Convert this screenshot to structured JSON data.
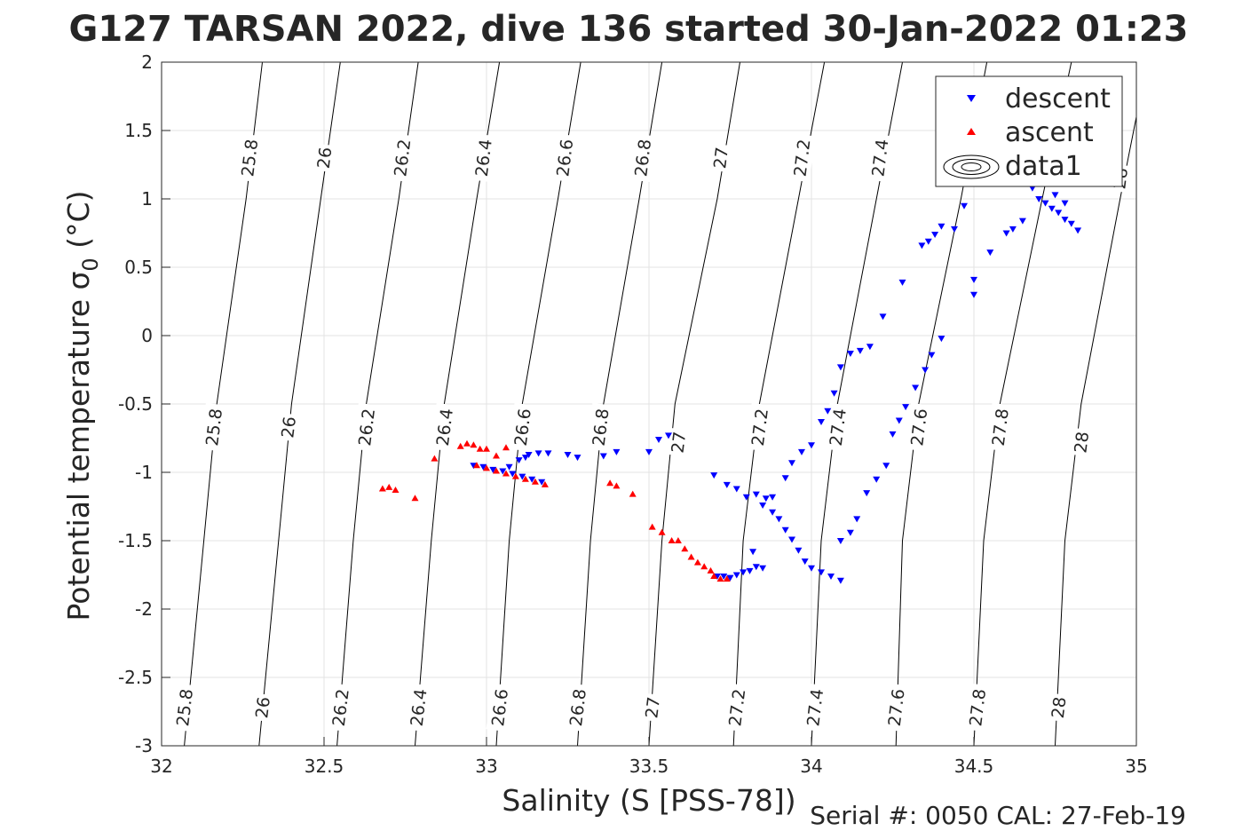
{
  "chart_data": {
    "type": "scatter",
    "title": "G127 TARSAN 2022, dive 136 started 30-Jan-2022 01:23",
    "xlabel": "Salinity (S [PSS-78])",
    "ylabel": "Potential temperature σ",
    "ylabel_subscript": "0",
    "ylabel_unit": " (°C)",
    "footer": "Serial #: 0050  CAL: 27-Feb-19",
    "xlim": [
      32,
      35
    ],
    "ylim": [
      -3,
      2
    ],
    "xticks": [
      32,
      32.5,
      33,
      33.5,
      34,
      34.5,
      35
    ],
    "yticks": [
      -3,
      -2.5,
      -2,
      -1.5,
      -1,
      -0.5,
      0,
      0.5,
      1,
      1.5,
      2
    ],
    "grid": true,
    "legend_placement": "top-right",
    "legend": [
      "descent",
      "ascent",
      "data1"
    ],
    "colors": {
      "descent": "#0000ff",
      "ascent": "#ff0000",
      "contour": "#000000"
    },
    "contours": [
      {
        "label": "25.8",
        "points": [
          [
            32.07,
            -3
          ],
          [
            32.13,
            -1.5
          ],
          [
            32.17,
            -0.5
          ],
          [
            32.26,
            1
          ],
          [
            32.31,
            2
          ]
        ]
      },
      {
        "label": "26",
        "points": [
          [
            32.3,
            -3
          ],
          [
            32.36,
            -1.5
          ],
          [
            32.4,
            -0.5
          ],
          [
            32.49,
            1
          ],
          [
            32.55,
            2
          ]
        ]
      },
      {
        "label": "26.2",
        "points": [
          [
            32.54,
            -3
          ],
          [
            32.59,
            -1.5
          ],
          [
            32.63,
            -0.5
          ],
          [
            32.73,
            1
          ],
          [
            32.79,
            2
          ]
        ]
      },
      {
        "label": "26.4",
        "points": [
          [
            32.78,
            -3
          ],
          [
            32.83,
            -1.5
          ],
          [
            32.87,
            -0.5
          ],
          [
            32.97,
            1
          ],
          [
            33.04,
            2
          ]
        ]
      },
      {
        "label": "26.6",
        "points": [
          [
            33.03,
            -3
          ],
          [
            33.07,
            -1.5
          ],
          [
            33.11,
            -0.5
          ],
          [
            33.22,
            1
          ],
          [
            33.29,
            2
          ]
        ]
      },
      {
        "label": "26.8",
        "points": [
          [
            33.28,
            -3
          ],
          [
            33.32,
            -1.5
          ],
          [
            33.36,
            -0.5
          ],
          [
            33.47,
            1
          ],
          [
            33.54,
            2
          ]
        ]
      },
      {
        "label": "27",
        "points": [
          [
            33.5,
            -3
          ],
          [
            33.54,
            -1.5
          ],
          [
            33.58,
            -0.5
          ],
          [
            33.71,
            1
          ],
          [
            33.78,
            2
          ]
        ]
      },
      {
        "label": "27.2",
        "points": [
          [
            33.76,
            -3
          ],
          [
            33.79,
            -1.5
          ],
          [
            33.84,
            -0.5
          ],
          [
            33.96,
            1
          ],
          [
            34.04,
            2
          ]
        ]
      },
      {
        "label": "27.4",
        "points": [
          [
            34.0,
            -3
          ],
          [
            34.03,
            -1.5
          ],
          [
            34.08,
            -0.5
          ],
          [
            34.2,
            1
          ],
          [
            34.28,
            2
          ]
        ]
      },
      {
        "label": "27.6",
        "points": [
          [
            34.26,
            -3
          ],
          [
            34.28,
            -1.5
          ],
          [
            34.33,
            -0.5
          ],
          [
            34.46,
            1
          ],
          [
            34.54,
            2
          ]
        ]
      },
      {
        "label": "27.8",
        "points": [
          [
            34.5,
            -3
          ],
          [
            34.53,
            -1.5
          ],
          [
            34.58,
            -0.5
          ],
          [
            34.71,
            1
          ],
          [
            34.8,
            2
          ]
        ]
      },
      {
        "label": "28",
        "points": [
          [
            34.75,
            -3
          ],
          [
            34.78,
            -1.5
          ],
          [
            34.83,
            -0.5
          ],
          [
            34.95,
            1
          ],
          [
            35.0,
            1.6
          ]
        ]
      }
    ],
    "contour_labels": [
      {
        "label": "25.8",
        "x": 32.07,
        "y": -2.72
      },
      {
        "label": "26",
        "x": 32.31,
        "y": -2.72
      },
      {
        "label": "26.2",
        "x": 32.55,
        "y": -2.72
      },
      {
        "label": "26.4",
        "x": 32.79,
        "y": -2.72
      },
      {
        "label": "26.6",
        "x": 33.04,
        "y": -2.72
      },
      {
        "label": "26.8",
        "x": 33.28,
        "y": -2.72
      },
      {
        "label": "27",
        "x": 33.51,
        "y": -2.72
      },
      {
        "label": "27.2",
        "x": 33.77,
        "y": -2.72
      },
      {
        "label": "27.4",
        "x": 34.01,
        "y": -2.72
      },
      {
        "label": "27.6",
        "x": 34.26,
        "y": -2.72
      },
      {
        "label": "27.8",
        "x": 34.51,
        "y": -2.72
      },
      {
        "label": "28",
        "x": 34.76,
        "y": -2.72
      },
      {
        "label": "25.8",
        "x": 32.16,
        "y": -0.67
      },
      {
        "label": "26",
        "x": 32.39,
        "y": -0.67
      },
      {
        "label": "26.2",
        "x": 32.63,
        "y": -0.67
      },
      {
        "label": "26.4",
        "x": 32.87,
        "y": -0.67
      },
      {
        "label": "26.6",
        "x": 33.11,
        "y": -0.67
      },
      {
        "label": "26.8",
        "x": 33.35,
        "y": -0.67
      },
      {
        "label": "27",
        "x": 33.59,
        "y": -0.78
      },
      {
        "label": "27.2",
        "x": 33.84,
        "y": -0.67
      },
      {
        "label": "27.4",
        "x": 34.08,
        "y": -0.67
      },
      {
        "label": "27.6",
        "x": 34.33,
        "y": -0.67
      },
      {
        "label": "27.8",
        "x": 34.58,
        "y": -0.67
      },
      {
        "label": "28",
        "x": 34.83,
        "y": -0.78
      },
      {
        "label": "25.8",
        "x": 32.27,
        "y": 1.3
      },
      {
        "label": "26",
        "x": 32.5,
        "y": 1.3
      },
      {
        "label": "26.2",
        "x": 32.74,
        "y": 1.3
      },
      {
        "label": "26.4",
        "x": 32.99,
        "y": 1.3
      },
      {
        "label": "26.6",
        "x": 33.24,
        "y": 1.3
      },
      {
        "label": "26.8",
        "x": 33.48,
        "y": 1.3
      },
      {
        "label": "27",
        "x": 33.72,
        "y": 1.3
      },
      {
        "label": "27.2",
        "x": 33.97,
        "y": 1.3
      },
      {
        "label": "27.4",
        "x": 34.21,
        "y": 1.3
      },
      {
        "label": "28",
        "x": 34.95,
        "y": 1.15
      }
    ],
    "series": [
      {
        "name": "descent",
        "marker": "triangle-down",
        "points": [
          [
            32.96,
            -0.95
          ],
          [
            32.99,
            -0.96
          ],
          [
            33.02,
            -0.98
          ],
          [
            33.05,
            -0.99
          ],
          [
            33.08,
            -1.01
          ],
          [
            33.11,
            -1.03
          ],
          [
            33.14,
            -1.05
          ],
          [
            33.17,
            -1.07
          ],
          [
            33.07,
            -0.96
          ],
          [
            33.1,
            -0.91
          ],
          [
            33.13,
            -0.87
          ],
          [
            33.16,
            -0.86
          ],
          [
            33.12,
            -0.89
          ],
          [
            33.19,
            -0.86
          ],
          [
            33.25,
            -0.87
          ],
          [
            33.28,
            -0.89
          ],
          [
            33.36,
            -0.88
          ],
          [
            33.4,
            -0.85
          ],
          [
            33.5,
            -0.85
          ],
          [
            33.53,
            -0.76
          ],
          [
            33.56,
            -0.73
          ],
          [
            33.71,
            -1.76
          ],
          [
            33.73,
            -1.76
          ],
          [
            33.75,
            -1.77
          ],
          [
            33.77,
            -1.75
          ],
          [
            33.79,
            -1.73
          ],
          [
            33.81,
            -1.72
          ],
          [
            33.83,
            -1.69
          ],
          [
            33.85,
            -1.7
          ],
          [
            33.7,
            -1.02
          ],
          [
            33.74,
            -1.09
          ],
          [
            33.77,
            -1.12
          ],
          [
            33.8,
            -1.18
          ],
          [
            33.83,
            -1.16
          ],
          [
            33.86,
            -1.19
          ],
          [
            33.88,
            -1.29
          ],
          [
            33.9,
            -1.34
          ],
          [
            33.92,
            -1.42
          ],
          [
            33.94,
            -1.49
          ],
          [
            33.96,
            -1.57
          ],
          [
            33.98,
            -1.65
          ],
          [
            34.0,
            -1.7
          ],
          [
            34.03,
            -1.73
          ],
          [
            34.06,
            -1.76
          ],
          [
            34.09,
            -1.79
          ],
          [
            33.82,
            -1.58
          ],
          [
            33.85,
            -1.24
          ],
          [
            33.88,
            -1.18
          ],
          [
            33.92,
            -1.04
          ],
          [
            33.94,
            -0.93
          ],
          [
            33.97,
            -0.85
          ],
          [
            34.0,
            -0.8
          ],
          [
            34.03,
            -0.63
          ],
          [
            34.05,
            -0.55
          ],
          [
            34.07,
            -0.42
          ],
          [
            34.09,
            -0.23
          ],
          [
            34.12,
            -0.13
          ],
          [
            34.15,
            -0.11
          ],
          [
            34.18,
            -0.08
          ],
          [
            34.09,
            -1.5
          ],
          [
            34.12,
            -1.44
          ],
          [
            34.14,
            -1.34
          ],
          [
            34.17,
            -1.15
          ],
          [
            34.2,
            -1.05
          ],
          [
            34.23,
            -0.95
          ],
          [
            34.25,
            -0.72
          ],
          [
            34.27,
            -0.62
          ],
          [
            34.29,
            -0.52
          ],
          [
            34.32,
            -0.38
          ],
          [
            34.35,
            -0.25
          ],
          [
            34.37,
            -0.14
          ],
          [
            34.4,
            -0.02
          ],
          [
            34.22,
            0.14
          ],
          [
            34.28,
            0.39
          ],
          [
            34.34,
            0.66
          ],
          [
            34.36,
            0.69
          ],
          [
            34.38,
            0.74
          ],
          [
            34.4,
            0.8
          ],
          [
            34.44,
            0.78
          ],
          [
            34.47,
            0.95
          ],
          [
            34.5,
            0.41
          ],
          [
            34.5,
            0.3
          ],
          [
            34.55,
            0.61
          ],
          [
            34.6,
            0.75
          ],
          [
            34.62,
            0.78
          ],
          [
            34.65,
            0.84
          ],
          [
            34.68,
            1.08
          ],
          [
            34.7,
            1.0
          ],
          [
            34.72,
            0.97
          ],
          [
            34.74,
            0.93
          ],
          [
            34.76,
            0.9
          ],
          [
            34.78,
            0.85
          ],
          [
            34.8,
            0.82
          ],
          [
            34.82,
            0.77
          ],
          [
            34.75,
            1.03
          ],
          [
            34.78,
            0.97
          ]
        ]
      },
      {
        "name": "ascent",
        "marker": "triangle-up",
        "points": [
          [
            32.68,
            -1.12
          ],
          [
            32.7,
            -1.11
          ],
          [
            32.72,
            -1.13
          ],
          [
            32.78,
            -1.19
          ],
          [
            32.84,
            -0.9
          ],
          [
            32.92,
            -0.81
          ],
          [
            32.94,
            -0.79
          ],
          [
            32.96,
            -0.8
          ],
          [
            32.98,
            -0.83
          ],
          [
            33.0,
            -0.83
          ],
          [
            33.03,
            -0.88
          ],
          [
            33.06,
            -0.82
          ],
          [
            32.97,
            -0.95
          ],
          [
            33.0,
            -0.97
          ],
          [
            33.03,
            -0.99
          ],
          [
            33.06,
            -1.01
          ],
          [
            33.09,
            -1.03
          ],
          [
            33.12,
            -1.05
          ],
          [
            33.15,
            -1.07
          ],
          [
            33.18,
            -1.09
          ],
          [
            33.38,
            -1.08
          ],
          [
            33.4,
            -1.1
          ],
          [
            33.45,
            -1.16
          ],
          [
            33.51,
            -1.4
          ],
          [
            33.54,
            -1.44
          ],
          [
            33.57,
            -1.5
          ],
          [
            33.59,
            -1.5
          ],
          [
            33.61,
            -1.56
          ],
          [
            33.63,
            -1.62
          ],
          [
            33.65,
            -1.66
          ],
          [
            33.67,
            -1.69
          ],
          [
            33.69,
            -1.72
          ],
          [
            33.7,
            -1.76
          ],
          [
            33.72,
            -1.78
          ],
          [
            33.74,
            -1.78
          ]
        ]
      }
    ]
  }
}
